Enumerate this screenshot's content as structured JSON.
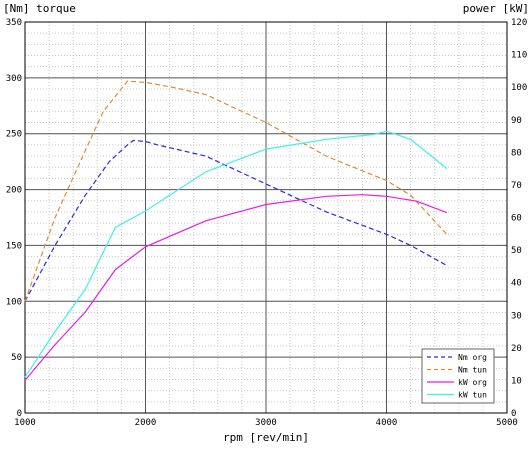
{
  "chart_data": {
    "type": "line",
    "title": "",
    "left_axis_label": "[Nm] torque",
    "right_axis_label": "power [kW]",
    "xlabel": "rpm [rev/min]",
    "xlim": [
      1000,
      5000
    ],
    "ylim_left": [
      0,
      350
    ],
    "ylim_right": [
      0,
      120
    ],
    "x_ticks": [
      1000,
      2000,
      3000,
      4000,
      5000
    ],
    "y_ticks_left": [
      0,
      50,
      100,
      150,
      200,
      250,
      300,
      350
    ],
    "y_ticks_right": [
      0,
      10,
      20,
      30,
      40,
      50,
      60,
      70,
      80,
      90,
      100,
      110,
      120
    ],
    "grid_major": true,
    "grid_minor": true,
    "legend_position": "bottom-right",
    "series": [
      {
        "name": "Nm org",
        "axis": "left",
        "style": "dashed",
        "color": "#2b2bdc",
        "x": [
          1000,
          1250,
          1500,
          1700,
          1850,
          1900,
          2000,
          2100,
          2500,
          3000,
          3500,
          4000,
          4200,
          4500
        ],
        "y": [
          100,
          150,
          195,
          225,
          240,
          244,
          243,
          240,
          230,
          205,
          180,
          160,
          150,
          132
        ]
      },
      {
        "name": "Nm tun",
        "axis": "left",
        "style": "dashed",
        "color": "#e08a3a",
        "x": [
          1000,
          1250,
          1500,
          1650,
          1850,
          2000,
          2250,
          2500,
          3000,
          3500,
          4000,
          4200,
          4500
        ],
        "y": [
          100,
          175,
          235,
          270,
          297,
          296,
          291,
          285,
          260,
          230,
          208,
          195,
          160
        ]
      },
      {
        "name": "kW org",
        "axis": "right",
        "style": "solid",
        "color": "#e61ee6",
        "x": [
          1000,
          1250,
          1500,
          1750,
          2000,
          2250,
          2500,
          3000,
          3500,
          3800,
          4000,
          4250,
          4500
        ],
        "y": [
          10,
          21,
          31,
          44,
          51,
          55,
          59,
          64,
          66.5,
          67,
          66.5,
          65,
          61.5
        ]
      },
      {
        "name": "kW tun",
        "axis": "right",
        "style": "solid",
        "color": "#3ef0e8",
        "x": [
          1000,
          1250,
          1500,
          1750,
          2000,
          2250,
          2500,
          3000,
          3500,
          3900,
          4000,
          4200,
          4500
        ],
        "y": [
          11,
          25,
          38,
          57,
          62,
          68,
          74,
          81,
          84,
          85.5,
          86.5,
          84,
          75
        ]
      }
    ]
  }
}
